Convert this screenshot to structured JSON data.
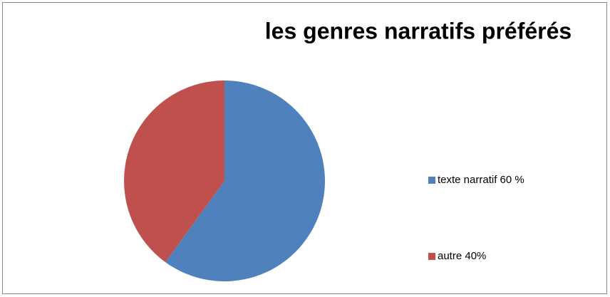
{
  "chart_data": {
    "type": "pie",
    "title": "les genres narratifs préférés",
    "categories": [
      "texte narratif 60 %",
      "autre 40%"
    ],
    "values": [
      60,
      40
    ],
    "colors": [
      "#4f81bd",
      "#c0504d"
    ],
    "legend": "right"
  }
}
